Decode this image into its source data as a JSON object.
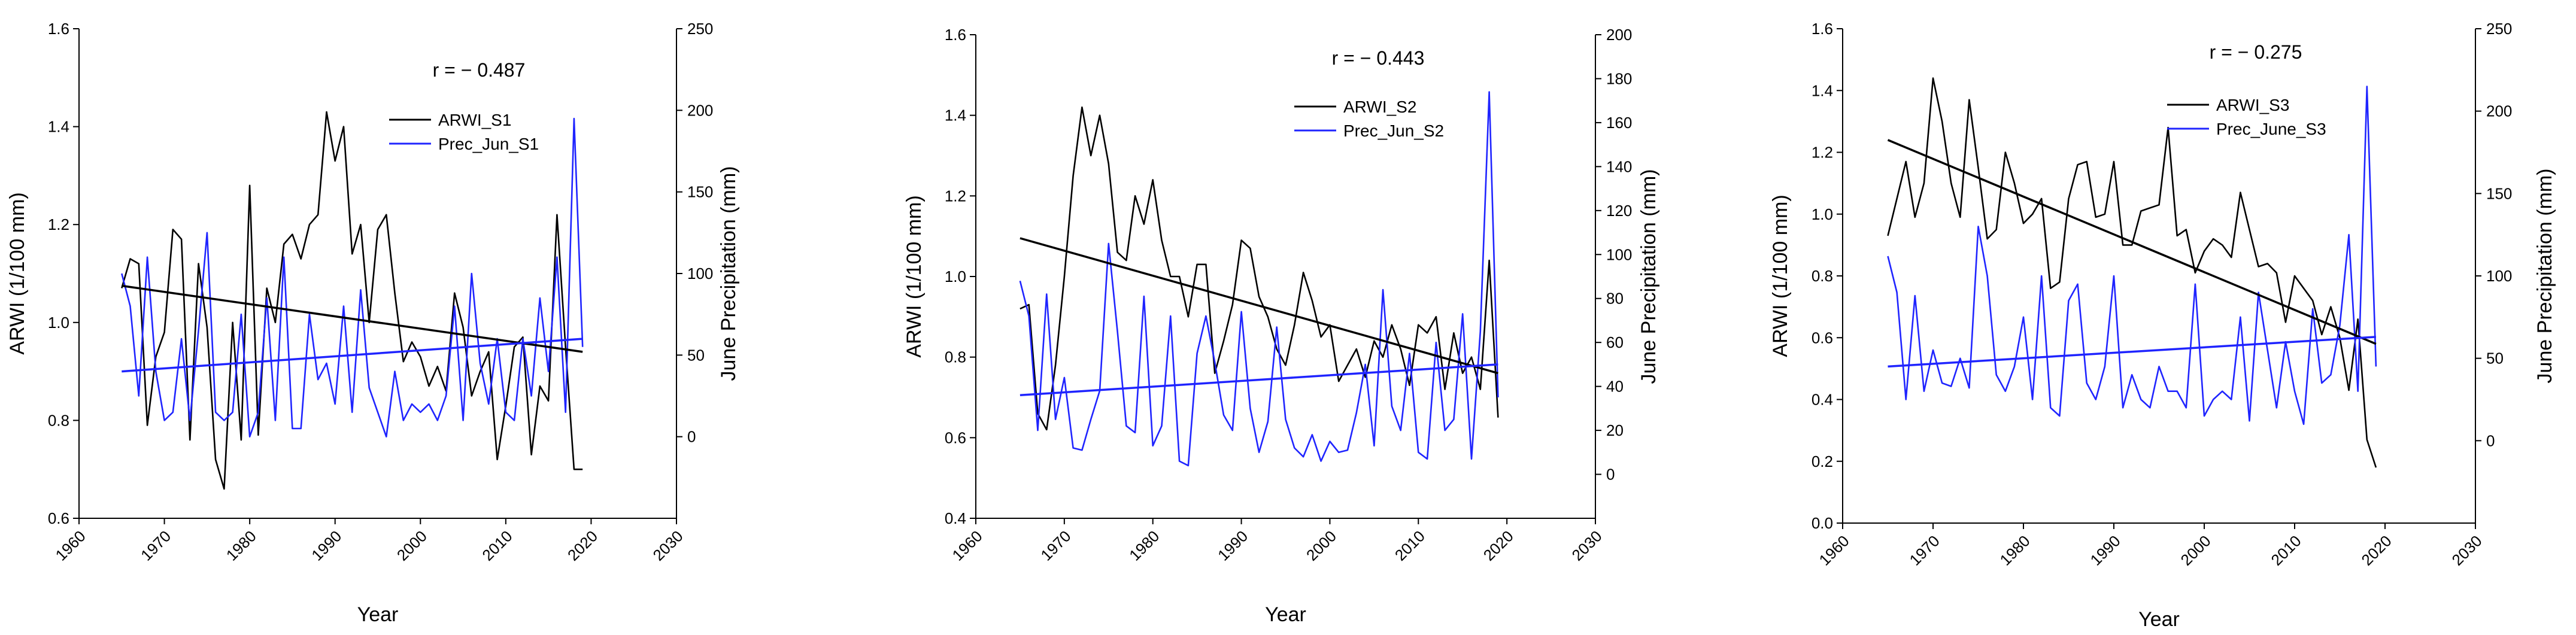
{
  "colors": {
    "arwi": "#000000",
    "prec": "#1f24ff"
  },
  "chart_data": [
    {
      "type": "line",
      "annotation": "r = − 0.487",
      "xlabel": "Year",
      "ylabel": "ARWI (1/100 mm)",
      "y2label": "June Precipitation (mm)",
      "xlim": [
        1960,
        2030
      ],
      "xticks": [
        1960,
        1970,
        1980,
        1990,
        2000,
        2010,
        2020,
        2030
      ],
      "ylim": [
        0.6,
        1.6
      ],
      "yticks": [
        0.6,
        0.8,
        1.0,
        1.2,
        1.4,
        1.6
      ],
      "y2lim": [
        -50,
        250
      ],
      "y2ticks": [
        0,
        50,
        100,
        150,
        200,
        250
      ],
      "legend": [
        "ARWI_S1",
        "Prec_Jun_S1"
      ],
      "x": [
        1965,
        1966,
        1967,
        1968,
        1969,
        1970,
        1971,
        1972,
        1973,
        1974,
        1975,
        1976,
        1977,
        1978,
        1979,
        1980,
        1981,
        1982,
        1983,
        1984,
        1985,
        1986,
        1987,
        1988,
        1989,
        1990,
        1991,
        1992,
        1993,
        1994,
        1995,
        1996,
        1997,
        1998,
        1999,
        2000,
        2001,
        2002,
        2003,
        2004,
        2005,
        2006,
        2007,
        2008,
        2009,
        2010,
        2011,
        2012,
        2013,
        2014,
        2015,
        2016,
        2017,
        2018,
        2019
      ],
      "series": [
        {
          "name": "ARWI_S1",
          "axis": "left",
          "values": [
            1.07,
            1.13,
            1.12,
            0.79,
            0.93,
            0.98,
            1.19,
            1.17,
            0.76,
            1.12,
            0.99,
            0.72,
            0.66,
            1.0,
            0.76,
            1.28,
            0.77,
            1.07,
            1.0,
            1.16,
            1.18,
            1.13,
            1.2,
            1.22,
            1.43,
            1.33,
            1.4,
            1.14,
            1.2,
            1.0,
            1.19,
            1.22,
            1.06,
            0.92,
            0.96,
            0.93,
            0.87,
            0.91,
            0.86,
            1.06,
            0.99,
            0.85,
            0.9,
            0.94,
            0.72,
            0.83,
            0.95,
            0.97,
            0.73,
            0.87,
            0.84,
            1.22,
            0.95,
            0.7,
            0.7
          ]
        },
        {
          "name": "Prec_Jun_S1",
          "axis": "right",
          "values": [
            100,
            80,
            25,
            110,
            40,
            10,
            15,
            60,
            10,
            65,
            125,
            15,
            10,
            15,
            75,
            0,
            15,
            85,
            10,
            110,
            5,
            5,
            75,
            35,
            45,
            20,
            80,
            15,
            90,
            30,
            15,
            0,
            40,
            10,
            20,
            15,
            20,
            10,
            25,
            80,
            10,
            100,
            45,
            20,
            60,
            15,
            10,
            60,
            25,
            85,
            40,
            110,
            15,
            195,
            55
          ]
        },
        {
          "name": "trend_ARWI_S1",
          "axis": "left",
          "values": [
            1.075,
            0.94
          ],
          "x": [
            1965,
            2019
          ]
        },
        {
          "name": "trend_Prec_Jun_S1",
          "axis": "right",
          "values": [
            40,
            60
          ],
          "x": [
            1965,
            2019
          ]
        }
      ]
    },
    {
      "type": "line",
      "annotation": "r = − 0.443",
      "xlabel": "Year",
      "ylabel": "ARWI (1/100 mm)",
      "y2label": "June Precipitation (mm)",
      "xlim": [
        1960,
        2030
      ],
      "xticks": [
        1960,
        1970,
        1980,
        1990,
        2000,
        2010,
        2020,
        2030
      ],
      "ylim": [
        0.4,
        1.6
      ],
      "yticks": [
        0.4,
        0.6,
        0.8,
        1.0,
        1.2,
        1.4,
        1.6
      ],
      "y2lim": [
        -20,
        200
      ],
      "y2ticks": [
        0,
        20,
        40,
        60,
        80,
        100,
        120,
        140,
        160,
        180,
        200
      ],
      "legend": [
        "ARWI_S2",
        "Prec_Jun_S2"
      ],
      "x": [
        1965,
        1966,
        1967,
        1968,
        1969,
        1970,
        1971,
        1972,
        1973,
        1974,
        1975,
        1976,
        1977,
        1978,
        1979,
        1980,
        1981,
        1982,
        1983,
        1984,
        1985,
        1986,
        1987,
        1988,
        1989,
        1990,
        1991,
        1992,
        1993,
        1994,
        1995,
        1996,
        1997,
        1998,
        1999,
        2000,
        2001,
        2002,
        2003,
        2004,
        2005,
        2006,
        2007,
        2008,
        2009,
        2010,
        2011,
        2012,
        2013,
        2014,
        2015,
        2016,
        2017,
        2018,
        2019
      ],
      "series": [
        {
          "name": "ARWI_S2",
          "axis": "left",
          "values": [
            0.92,
            0.93,
            0.66,
            0.62,
            0.78,
            1.0,
            1.25,
            1.42,
            1.3,
            1.4,
            1.28,
            1.06,
            1.04,
            1.2,
            1.13,
            1.24,
            1.09,
            1.0,
            1.0,
            0.9,
            1.03,
            1.03,
            0.76,
            0.84,
            0.93,
            1.09,
            1.07,
            0.95,
            0.9,
            0.82,
            0.78,
            0.88,
            1.01,
            0.94,
            0.85,
            0.88,
            0.74,
            0.78,
            0.82,
            0.75,
            0.84,
            0.8,
            0.88,
            0.82,
            0.73,
            0.88,
            0.86,
            0.9,
            0.72,
            0.86,
            0.76,
            0.8,
            0.72,
            1.04,
            0.65
          ]
        },
        {
          "name": "Prec_Jun_S2",
          "axis": "right",
          "values": [
            88,
            72,
            20,
            82,
            25,
            44,
            12,
            11,
            25,
            38,
            105,
            65,
            22,
            19,
            81,
            13,
            22,
            72,
            6,
            4,
            55,
            72,
            51,
            27,
            20,
            74,
            30,
            10,
            24,
            67,
            25,
            12,
            8,
            18,
            6,
            15,
            10,
            11,
            28,
            50,
            13,
            84,
            31,
            20,
            55,
            10,
            7,
            60,
            20,
            25,
            73,
            7,
            65,
            174,
            35
          ]
        },
        {
          "name": "trend_ARWI_S2",
          "axis": "left",
          "values": [
            1.095,
            0.76
          ],
          "x": [
            1965,
            2019
          ]
        },
        {
          "name": "trend_Prec_Jun_S2",
          "axis": "right",
          "values": [
            36,
            50
          ],
          "x": [
            1965,
            2019
          ]
        }
      ]
    },
    {
      "type": "line",
      "annotation": "r = − 0.275",
      "xlabel": "Year",
      "ylabel": "ARWI (1/100 mm)",
      "y2label": "June Precipitation (mm)",
      "xlim": [
        1960,
        2030
      ],
      "xticks": [
        1960,
        1970,
        1980,
        1990,
        2000,
        2010,
        2020,
        2030
      ],
      "ylim": [
        0.0,
        1.6
      ],
      "yticks": [
        0.0,
        0.2,
        0.4,
        0.6,
        0.8,
        1.0,
        1.2,
        1.4,
        1.6
      ],
      "y2lim": [
        -50,
        250
      ],
      "y2ticks": [
        0,
        50,
        100,
        150,
        200,
        250
      ],
      "legend": [
        "ARWI_S3",
        "Prec_June_S3"
      ],
      "x": [
        1965,
        1966,
        1967,
        1968,
        1969,
        1970,
        1971,
        1972,
        1973,
        1974,
        1975,
        1976,
        1977,
        1978,
        1979,
        1980,
        1981,
        1982,
        1983,
        1984,
        1985,
        1986,
        1987,
        1988,
        1989,
        1990,
        1991,
        1992,
        1993,
        1994,
        1995,
        1996,
        1997,
        1998,
        1999,
        2000,
        2001,
        2002,
        2003,
        2004,
        2005,
        2006,
        2007,
        2008,
        2009,
        2010,
        2011,
        2012,
        2013,
        2014,
        2015,
        2016,
        2017,
        2018,
        2019
      ],
      "series": [
        {
          "name": "ARWI_S3",
          "axis": "left",
          "values": [
            0.93,
            1.05,
            1.17,
            0.99,
            1.1,
            1.44,
            1.3,
            1.1,
            0.99,
            1.37,
            1.15,
            0.92,
            0.95,
            1.2,
            1.1,
            0.97,
            1.0,
            1.05,
            0.76,
            0.78,
            1.05,
            1.16,
            1.17,
            0.99,
            1.0,
            1.17,
            0.9,
            0.9,
            1.01,
            1.02,
            1.03,
            1.28,
            0.93,
            0.95,
            0.81,
            0.88,
            0.92,
            0.9,
            0.86,
            1.07,
            0.95,
            0.83,
            0.84,
            0.81,
            0.65,
            0.8,
            0.76,
            0.72,
            0.61,
            0.7,
            0.6,
            0.43,
            0.66,
            0.27,
            0.18
          ]
        },
        {
          "name": "Prec_June_S3",
          "axis": "right",
          "values": [
            112,
            90,
            25,
            88,
            30,
            55,
            35,
            33,
            50,
            32,
            130,
            100,
            40,
            30,
            45,
            75,
            25,
            100,
            20,
            15,
            85,
            95,
            35,
            25,
            45,
            100,
            20,
            40,
            25,
            20,
            45,
            30,
            30,
            20,
            95,
            15,
            25,
            30,
            25,
            75,
            12,
            90,
            55,
            20,
            60,
            30,
            10,
            80,
            35,
            40,
            70,
            125,
            30,
            215,
            45
          ]
        },
        {
          "name": "trend_ARWI_S3",
          "axis": "left",
          "values": [
            1.24,
            0.58
          ],
          "x": [
            1965,
            2019
          ]
        },
        {
          "name": "trend_Prec_June_S3",
          "axis": "right",
          "values": [
            45,
            63
          ],
          "x": [
            1965,
            2019
          ]
        }
      ]
    }
  ]
}
